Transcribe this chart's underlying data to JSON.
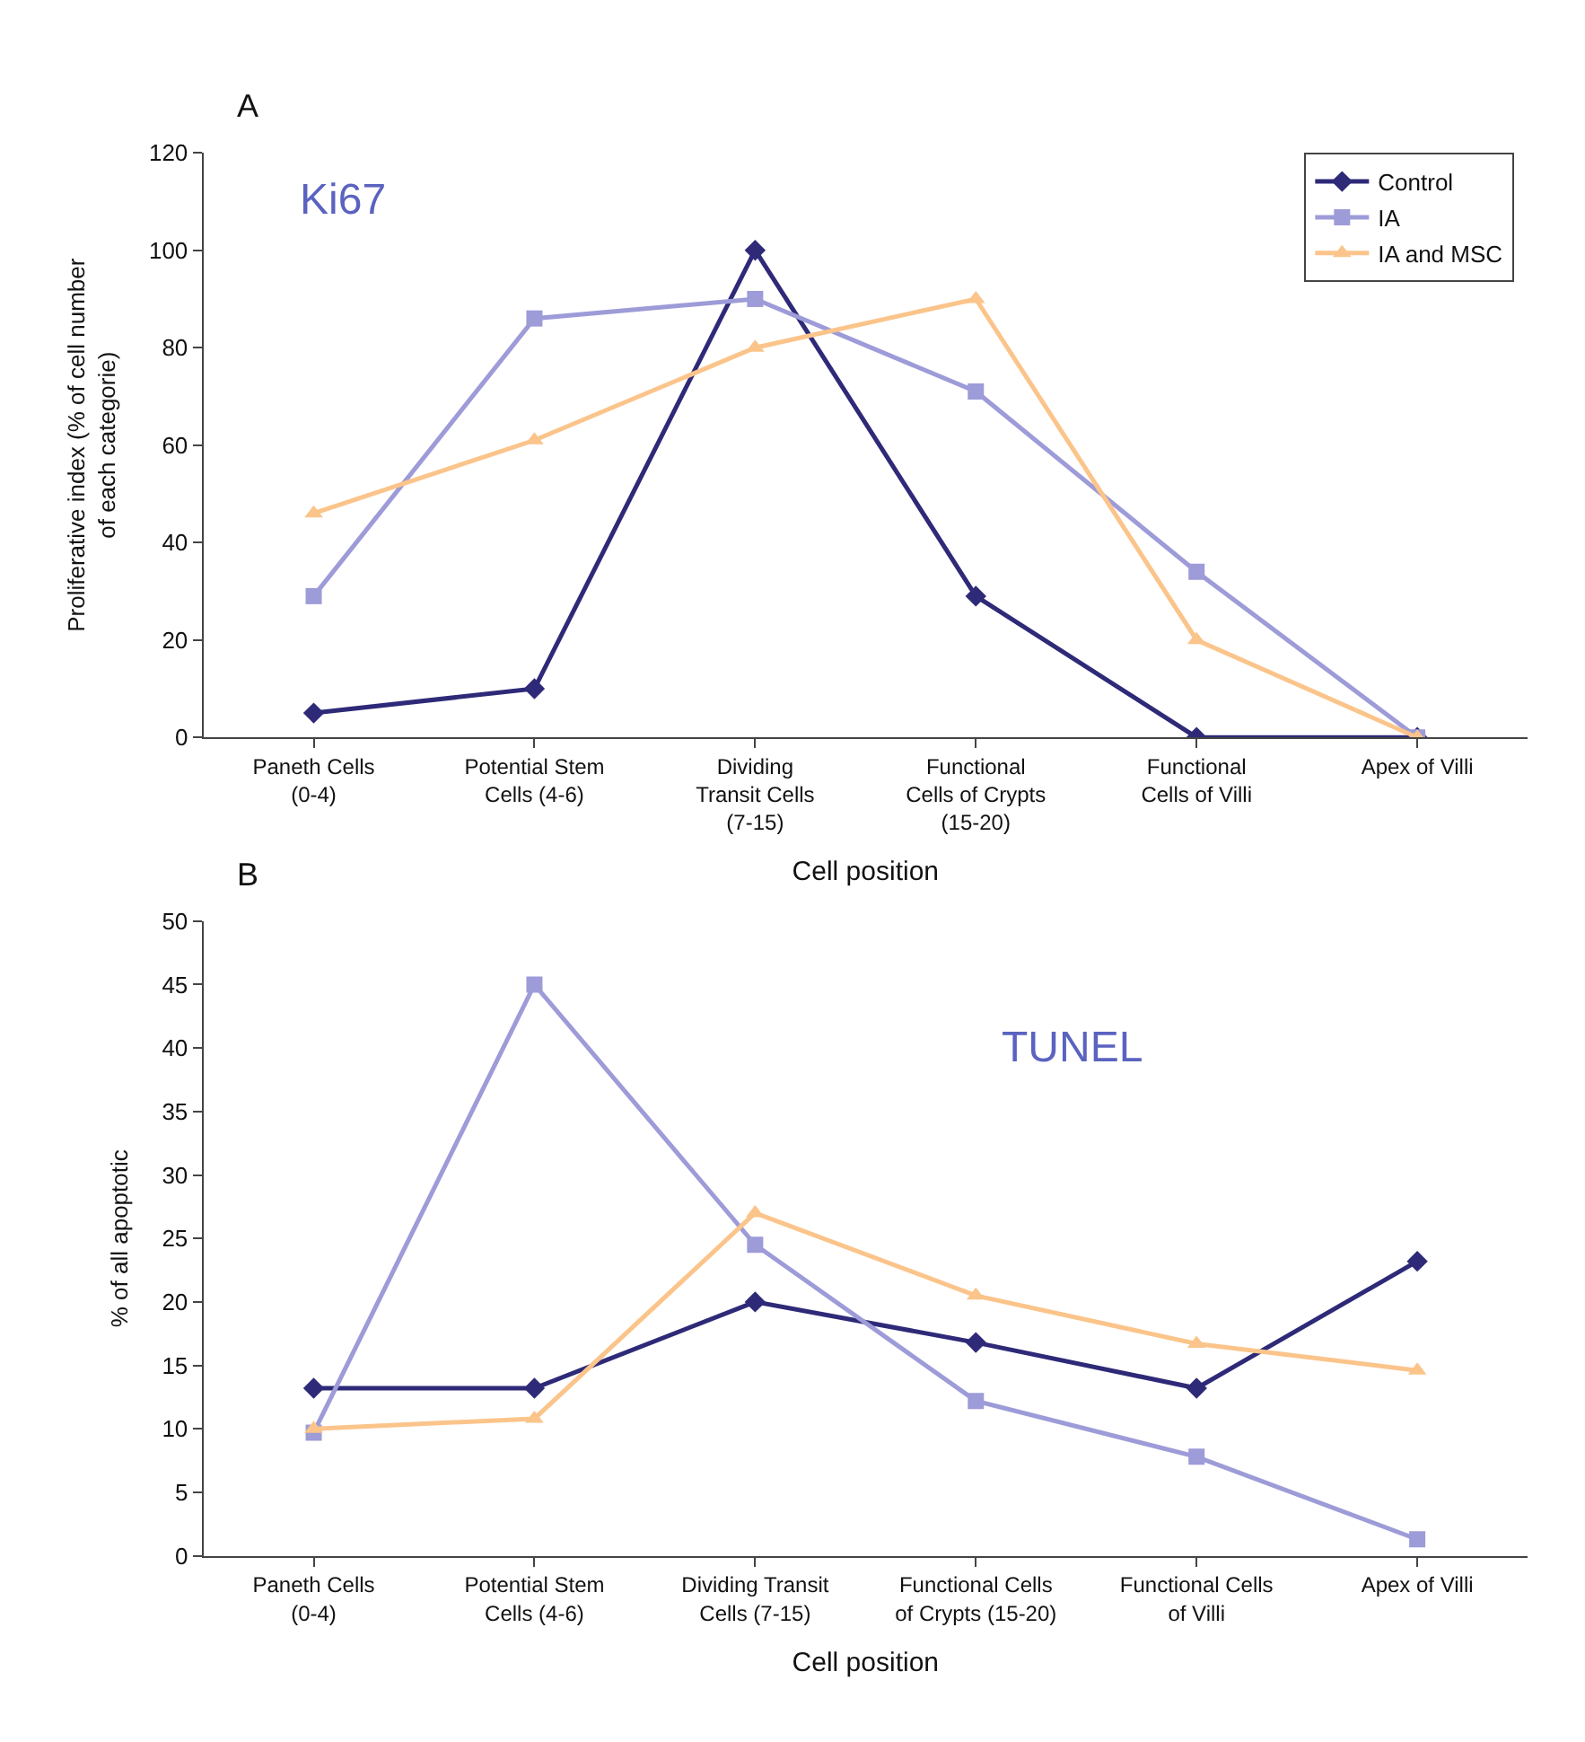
{
  "chart_data": [
    {
      "type": "line",
      "title": "A",
      "xlabel": "Cell position",
      "ylabel": "Proliferative index (% of cell number\nof each categorie)",
      "annotations": [
        "Ki67"
      ],
      "categories": [
        "Paneth Cells\n(0-4)",
        "Potential Stem\nCells (4-6)",
        "Dividing\nTransit Cells\n(7-15)",
        "Functional\nCells of Crypts\n(15-20)",
        "Functional\nCells of Villi",
        "Apex of Villi"
      ],
      "series": [
        {
          "name": "Control",
          "color": "#2e2a78",
          "marker": "diamond",
          "values": [
            5,
            10,
            100,
            29,
            0,
            0
          ]
        },
        {
          "name": "IA",
          "color": "#9d9bd8",
          "marker": "square",
          "values": [
            29,
            86,
            90,
            71,
            34,
            0
          ]
        },
        {
          "name": "IA and MSC",
          "color": "#fbc48a",
          "marker": "triangle",
          "values": [
            46,
            61,
            80,
            90,
            20,
            0
          ]
        }
      ],
      "ylim": [
        0,
        120
      ],
      "yticks": [
        0,
        20,
        40,
        60,
        80,
        100,
        120
      ],
      "legend": "top right",
      "line_style": "solid"
    },
    {
      "type": "line",
      "title": "B",
      "xlabel": "Cell position",
      "ylabel": "% of all apoptotic",
      "annotations": [
        "TUNEL"
      ],
      "categories": [
        "Paneth Cells\n(0-4)",
        "Potential Stem\nCells (4-6)",
        "Dividing Transit\nCells (7-15)",
        "Functional Cells\nof Crypts (15-20)",
        "Functional Cells\nof Villi",
        "Apex of Villi"
      ],
      "series": [
        {
          "color": "#2e2a78",
          "marker": "diamond",
          "values": [
            13.2,
            13.2,
            20,
            16.8,
            13.2,
            23.2
          ]
        },
        {
          "color": "#9d9bd8",
          "marker": "square",
          "values": [
            9.7,
            45,
            24.5,
            12.2,
            7.8,
            1.3
          ]
        },
        {
          "color": "#fbc48a",
          "marker": "triangle",
          "values": [
            10,
            10.8,
            27,
            20.5,
            16.7,
            14.6
          ]
        }
      ],
      "ylim": [
        0,
        50
      ],
      "yticks": [
        0,
        5,
        10,
        15,
        20,
        25,
        30,
        35,
        40,
        45,
        50
      ],
      "legend": false,
      "line_style": "solid"
    }
  ]
}
